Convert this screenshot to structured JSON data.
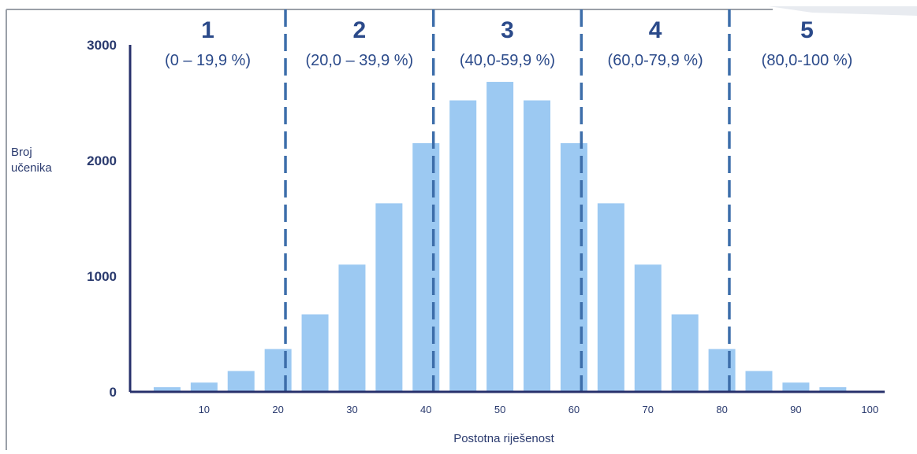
{
  "chart_data": {
    "type": "bar",
    "title": "",
    "xlabel": "Postotna riješenost",
    "ylabel": [
      "Broj",
      "učenika"
    ],
    "ylim": [
      0,
      3000
    ],
    "xlim": [
      0,
      102
    ],
    "yticks": [
      0,
      1000,
      2000,
      3000
    ],
    "xticks": [
      10,
      20,
      30,
      40,
      50,
      60,
      70,
      80,
      90,
      100
    ],
    "grid": false,
    "bar_color": "#9cc9f2",
    "divider_color": "#3d6eaa",
    "x": [
      5,
      10,
      15,
      20,
      25,
      30,
      35,
      40,
      45,
      50,
      55,
      60,
      65,
      70,
      75,
      80,
      85,
      90,
      95
    ],
    "values": [
      40,
      80,
      180,
      370,
      670,
      1100,
      1630,
      2150,
      2520,
      2680,
      2520,
      2150,
      1630,
      1100,
      670,
      370,
      180,
      80,
      40
    ],
    "dividers": [
      21,
      41,
      61,
      81
    ],
    "grades": [
      {
        "number": "1",
        "range": "(0 – 19,9 %)",
        "from": 0,
        "to": 21
      },
      {
        "number": "2",
        "range": "(20,0 – 39,9 %)",
        "from": 21,
        "to": 41
      },
      {
        "number": "3",
        "range": "(40,0-59,9 %)",
        "from": 41,
        "to": 61
      },
      {
        "number": "4",
        "range": "(60,0-79,9 %)",
        "from": 61,
        "to": 81
      },
      {
        "number": "5",
        "range": "(80,0-100 %)",
        "from": 81,
        "to": 102
      }
    ]
  }
}
